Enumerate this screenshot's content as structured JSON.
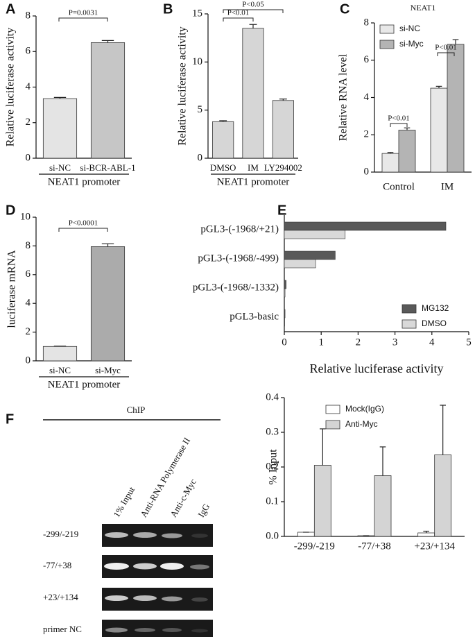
{
  "chart_data": [
    {
      "type": "bar",
      "panel": "A",
      "ylabel": "Relative luciferase activity",
      "categories": [
        "si-NC",
        "si-BCR-ABL-1"
      ],
      "values": [
        3.35,
        6.5
      ],
      "errors": [
        0.07,
        0.12
      ],
      "colors": [
        "#e4e4e4",
        "#c6c6c6"
      ],
      "ylim": [
        0,
        8
      ],
      "yticks": [
        0,
        2,
        4,
        6,
        8
      ],
      "group_label": "NEAT1 promoter",
      "annotations": [
        "P=0.0031"
      ]
    },
    {
      "type": "bar",
      "panel": "B",
      "ylabel": "Relative luciferase activity",
      "categories": [
        "DMSO",
        "IM",
        "LY294002"
      ],
      "values": [
        3.8,
        13.5,
        6.0
      ],
      "errors": [
        0.1,
        0.4,
        0.15
      ],
      "colors": [
        "#d6d6d6",
        "#d6d6d6",
        "#d6d6d6"
      ],
      "ylim": [
        0,
        15
      ],
      "yticks": [
        0,
        5,
        10,
        15
      ],
      "group_label": "NEAT1 promoter",
      "annotations": [
        "P<0.01",
        "P<0.05"
      ]
    },
    {
      "type": "bar",
      "panel": "C",
      "title": "NEAT1",
      "ylabel": "Relative RNA level",
      "categories": [
        "Control",
        "IM"
      ],
      "series": [
        {
          "name": "si-NC",
          "color": "#e8e8e8",
          "values": [
            1.0,
            4.5
          ],
          "errors": [
            0.05,
            0.1
          ]
        },
        {
          "name": "si-Myc",
          "color": "#b4b4b4",
          "values": [
            2.25,
            6.85
          ],
          "errors": [
            0.12,
            0.25
          ]
        }
      ],
      "ylim": [
        0,
        8
      ],
      "yticks": [
        0,
        2,
        4,
        6,
        8
      ],
      "annotations": [
        "P<0.01",
        "P<0.01"
      ]
    },
    {
      "type": "bar",
      "panel": "D",
      "ylabel": "luciferase mRNA",
      "categories": [
        "si-NC",
        "si-Myc"
      ],
      "values": [
        1.0,
        7.95
      ],
      "errors": [
        0.02,
        0.2
      ],
      "colors": [
        "#e4e4e4",
        "#ababab"
      ],
      "ylim": [
        0,
        10
      ],
      "yticks": [
        0,
        2,
        4,
        6,
        8,
        10
      ],
      "group_label": "NEAT1 promoter",
      "annotations": [
        "P<0.0001"
      ]
    },
    {
      "type": "barh",
      "panel": "E",
      "xlabel": "Relative luciferase activity",
      "categories": [
        "pGL3-(-1968/+21)",
        "pGL3-(-1968/-499)",
        "pGL3-(-1968/-1332)",
        "pGL3-basic"
      ],
      "series": [
        {
          "name": "MG132",
          "color": "#595959",
          "values": [
            4.38,
            1.38,
            0.05,
            0.02
          ]
        },
        {
          "name": "DMSO",
          "color": "#d9d9d9",
          "values": [
            1.65,
            0.85,
            0.02,
            0.01
          ]
        }
      ],
      "xlim": [
        0,
        5
      ],
      "xticks": [
        0,
        1,
        2,
        3,
        4,
        5
      ]
    },
    {
      "type": "bar",
      "ylabel": "% Input",
      "categories": [
        "-299/-219",
        "-77/+38",
        "+23/+134"
      ],
      "series": [
        {
          "name": "Mock(IgG)",
          "color": "#ffffff",
          "values": [
            0.012,
            0.002,
            0.01
          ],
          "errors": [
            0,
            0,
            0.005
          ]
        },
        {
          "name": "Anti-Myc",
          "color": "#d4d4d4",
          "values": [
            0.205,
            0.175,
            0.235
          ],
          "errors": [
            0.105,
            0.083,
            0.143
          ]
        }
      ],
      "ylim": [
        0,
        0.4
      ],
      "yticks": [
        {
          "value": 0,
          "label": "0.0"
        },
        0.1,
        0.2,
        0.3,
        0.4
      ]
    }
  ],
  "gel": {
    "panel": "F",
    "title": "ChIP",
    "lanes": [
      "1% Input",
      "Anti-RNA Polymerase II",
      "Anti-c-Myc",
      "IgG"
    ],
    "rows": [
      "-299/-219",
      "-77/+38",
      "+23/+134",
      "primer NC"
    ]
  }
}
